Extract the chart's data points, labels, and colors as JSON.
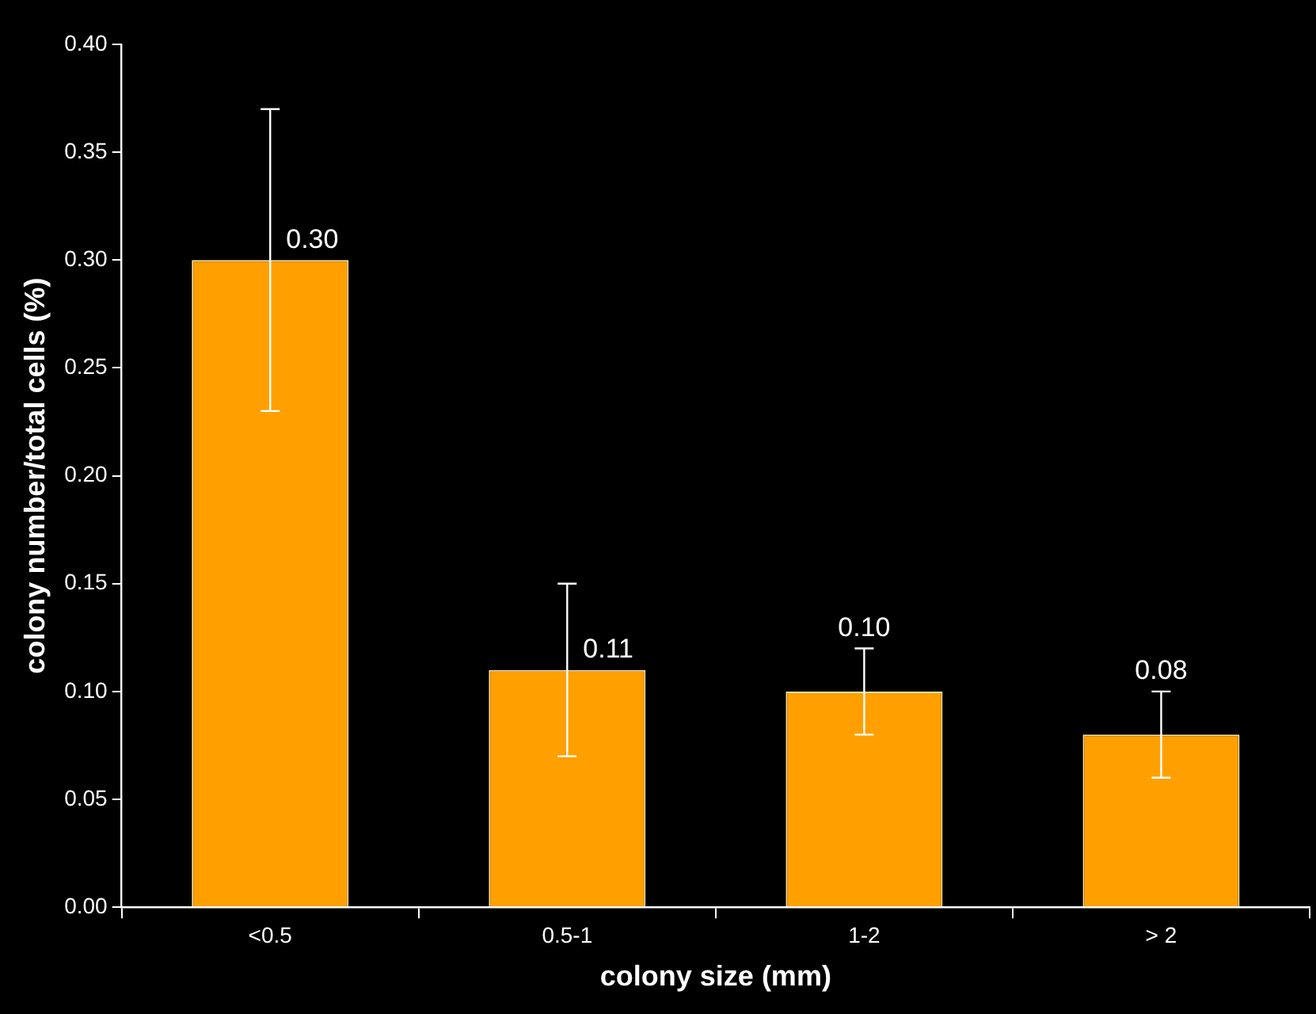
{
  "chart_data": {
    "type": "bar",
    "xlabel": "colony size (mm)",
    "ylabel": "colony number/total cells (%)",
    "categories": [
      "<0.5",
      "0.5-1",
      "1-2",
      "> 2"
    ],
    "values": [
      0.3,
      0.11,
      0.1,
      0.08
    ],
    "errors": [
      0.07,
      0.04,
      0.02,
      0.02
    ],
    "value_labels": [
      "0.30",
      "0.11",
      "0.10",
      "0.08"
    ],
    "color": "#ffa000",
    "ylim": [
      0,
      0.4
    ],
    "yticks": [
      {
        "value": 0,
        "label": "0.00"
      },
      {
        "value": 0.05,
        "label": "0.05"
      },
      {
        "value": 0.1,
        "label": "0.10"
      },
      {
        "value": 0.15,
        "label": "0.15"
      },
      {
        "value": 0.2,
        "label": "0.20"
      },
      {
        "value": 0.25,
        "label": "0.25"
      },
      {
        "value": 0.3,
        "label": "0.30"
      },
      {
        "value": 0.35,
        "label": "0.35"
      },
      {
        "value": 0.4,
        "label": "0.40"
      }
    ],
    "grid": false,
    "legend": false
  }
}
